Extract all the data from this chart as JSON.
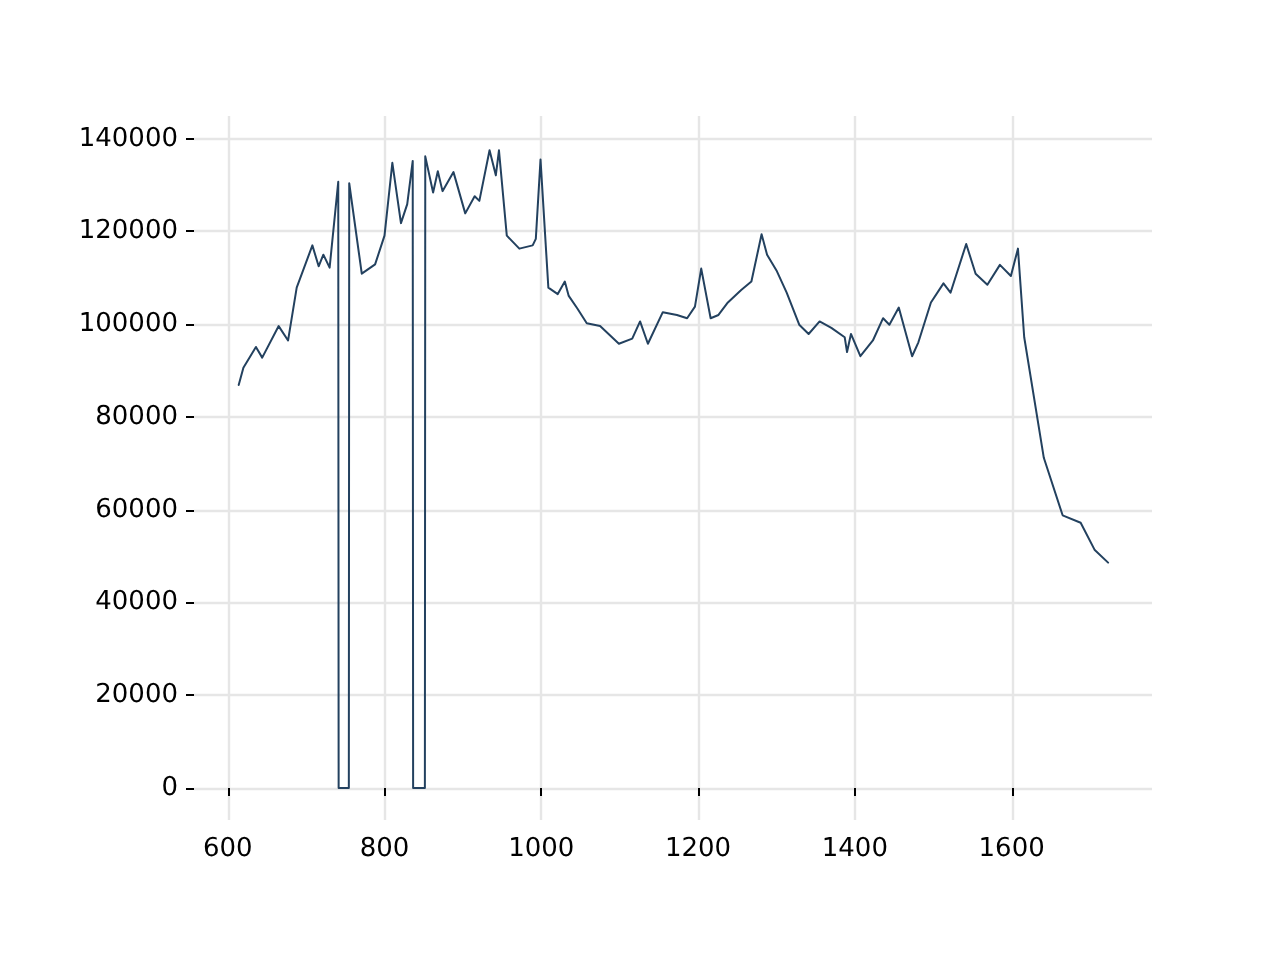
{
  "chart_data": {
    "type": "line",
    "xlim": [
      557,
      1779
    ],
    "xticks": [
      600,
      800,
      1000,
      1200,
      1400,
      1600
    ],
    "ylim": [
      -6900,
      144900
    ],
    "yticks": [
      0,
      20000,
      40000,
      60000,
      80000,
      100000,
      120000,
      140000
    ],
    "grid": true,
    "marker": "none",
    "line_style": "solid",
    "series": [
      {
        "color": "#23415f",
        "x": [
          614,
          620,
          636,
          644,
          665,
          677,
          688,
          708,
          716,
          722,
          730,
          741,
          741.5,
          754.5,
          755,
          771,
          788,
          800,
          810,
          821,
          829,
          836,
          836.5,
          851.5,
          852,
          862,
          868,
          874,
          888,
          903,
          915,
          921,
          934,
          942,
          946,
          956,
          972,
          989,
          993,
          999,
          1009,
          1021,
          1030,
          1035,
          1046,
          1058,
          1075,
          1099,
          1116,
          1126,
          1136,
          1155,
          1173,
          1186,
          1196,
          1204,
          1216,
          1226,
          1238,
          1255,
          1268,
          1281,
          1288,
          1300,
          1313,
          1329,
          1341,
          1355,
          1370,
          1387,
          1390,
          1395,
          1407,
          1423,
          1436,
          1444,
          1456,
          1473,
          1481,
          1497,
          1513,
          1522,
          1542,
          1554,
          1569,
          1585,
          1599,
          1608,
          1616,
          1641,
          1665,
          1688,
          1706,
          1723
        ],
        "values": [
          86900,
          90600,
          95100,
          92800,
          99600,
          96500,
          107900,
          117000,
          112500,
          115000,
          112200,
          130700,
          0,
          0,
          130400,
          110900,
          112900,
          119100,
          134800,
          121800,
          125900,
          135200,
          0,
          0,
          136200,
          128400,
          133000,
          128700,
          132800,
          123900,
          127600,
          126600,
          137500,
          132100,
          137500,
          119100,
          116300,
          117000,
          118400,
          135500,
          107900,
          106500,
          109200,
          106100,
          103400,
          100200,
          99600,
          95800,
          96900,
          100600,
          95800,
          102600,
          102000,
          101300,
          103800,
          112000,
          101300,
          102000,
          104700,
          107400,
          109200,
          119400,
          115000,
          111600,
          106800,
          99900,
          97900,
          100600,
          99200,
          97200,
          94000,
          97900,
          93100,
          96500,
          101300,
          99900,
          103600,
          93100,
          96100,
          104700,
          108800,
          106800,
          117300,
          110900,
          108500,
          112800,
          110400,
          116300,
          97200,
          71200,
          58800,
          57200,
          51300,
          48600
        ]
      }
    ]
  }
}
